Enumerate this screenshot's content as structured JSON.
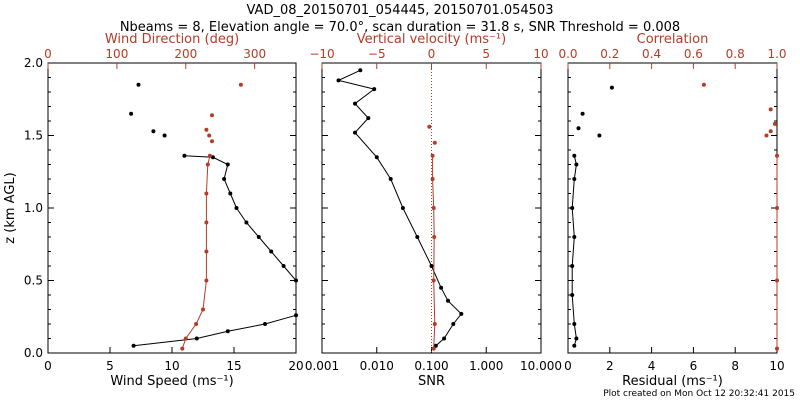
{
  "title_line1": "VAD_08_20150701_054445, 20150701.054503",
  "title_line2": "Nbeams = 8, Elevation angle = 70.0°, scan duration = 31.8 s, SNR Threshold = 0.008",
  "footer": "Plot created on Mon Oct 12 20:32:41 2015",
  "colors": {
    "black": "#000000",
    "red": "#b43c28"
  },
  "chart_data": [
    {
      "type": "line",
      "ylabel": "z (km AGL)",
      "ylim": [
        0,
        2.0
      ],
      "yticks": [
        "0.0",
        "0.5",
        "1.0",
        "1.5",
        "2.0"
      ],
      "xlabel_bottom": "Wind Speed (ms⁻¹)",
      "xlim_bottom": [
        0,
        20
      ],
      "xticks_bottom": [
        "0",
        "5",
        "10",
        "15",
        "20"
      ],
      "xlabel_top": "Wind Direction (deg)",
      "xlim_top": [
        0,
        360
      ],
      "xticks_top": [
        "0",
        "100",
        "200",
        "300"
      ],
      "series": [
        {
          "axis": "bottom",
          "color": "black",
          "connected": true,
          "points": [
            [
              6.9,
              0.05
            ],
            [
              12,
              0.1
            ],
            [
              14.5,
              0.15
            ],
            [
              17.5,
              0.2
            ],
            [
              20.0,
              0.26
            ],
            [
              20,
              0.5
            ],
            [
              19,
              0.6
            ],
            [
              18,
              0.7
            ],
            [
              17,
              0.8
            ],
            [
              16,
              0.9
            ],
            [
              15.2,
              1.0
            ],
            [
              14.7,
              1.1
            ],
            [
              14.2,
              1.2
            ],
            [
              14.5,
              1.3
            ],
            [
              13.3,
              1.35
            ],
            [
              11,
              1.36
            ]
          ]
        },
        {
          "axis": "bottom",
          "color": "black",
          "connected": false,
          "points": [
            [
              7.3,
              1.85
            ],
            [
              6.7,
              1.65
            ],
            [
              8.5,
              1.53
            ],
            [
              9.4,
              1.5
            ]
          ]
        },
        {
          "axis": "top",
          "color": "red",
          "connected": true,
          "points": [
            [
              195,
              0.03
            ],
            [
              200,
              0.1
            ],
            [
              215,
              0.2
            ],
            [
              225,
              0.3
            ],
            [
              230,
              0.5
            ],
            [
              230,
              0.7
            ],
            [
              230,
              0.9
            ],
            [
              230,
              1.1
            ],
            [
              232,
              1.3
            ],
            [
              235,
              1.36
            ]
          ]
        },
        {
          "axis": "top",
          "color": "red",
          "connected": false,
          "points": [
            [
              280,
              1.85
            ],
            [
              238,
              1.64
            ],
            [
              230,
              1.54
            ],
            [
              234,
              1.5
            ],
            [
              238,
              1.46
            ]
          ]
        }
      ]
    },
    {
      "type": "line",
      "xscale": "log",
      "ylim": [
        0,
        2.0
      ],
      "xlabel_bottom": "SNR",
      "xlim_bottom": [
        0.001,
        10.0
      ],
      "xticks_bottom": [
        "0.001",
        "0.010",
        "0.100",
        "1.000",
        "10.000"
      ],
      "xlabel_top": "Vertical velocity (ms⁻¹)",
      "xlim_top": [
        -10,
        10
      ],
      "xticks_top": [
        "−10",
        "−5",
        "0",
        "5",
        "10"
      ],
      "series": [
        {
          "axis": "bottom",
          "color": "black",
          "connected": true,
          "points": [
            [
              0.12,
              0.05
            ],
            [
              0.17,
              0.1
            ],
            [
              0.25,
              0.2
            ],
            [
              0.35,
              0.27
            ],
            [
              0.2,
              0.36
            ],
            [
              0.15,
              0.45
            ],
            [
              0.1,
              0.6
            ],
            [
              0.055,
              0.8
            ],
            [
              0.03,
              1.0
            ],
            [
              0.018,
              1.2
            ],
            [
              0.01,
              1.35
            ],
            [
              0.004,
              1.52
            ],
            [
              0.007,
              1.62
            ],
            [
              0.004,
              1.72
            ],
            [
              0.009,
              1.82
            ],
            [
              0.002,
              1.88
            ],
            [
              0.005,
              1.95
            ]
          ]
        },
        {
          "axis": "top",
          "color": "red",
          "connected": true,
          "points": [
            [
              0.2,
              0.03
            ],
            [
              0.3,
              0.2
            ],
            [
              0.2,
              0.5
            ],
            [
              0.25,
              0.8
            ],
            [
              0.2,
              1.0
            ],
            [
              0.1,
              1.2
            ],
            [
              0.1,
              1.36
            ]
          ]
        },
        {
          "axis": "top",
          "color": "red",
          "connected": false,
          "points": [
            [
              -0.2,
              1.56
            ],
            [
              0.3,
              1.45
            ]
          ]
        }
      ],
      "reference_line": {
        "axis": "top",
        "x": 0,
        "style": "dotted",
        "color": "red"
      }
    },
    {
      "type": "line",
      "ylim": [
        0,
        2.0
      ],
      "xlabel_bottom": "Residual (ms⁻¹)",
      "xlim_bottom": [
        0,
        10
      ],
      "xticks_bottom": [
        "0",
        "2",
        "4",
        "6",
        "8",
        "10"
      ],
      "xlabel_top": "Correlation",
      "xlim_top": [
        0.0,
        1.0
      ],
      "xticks_top": [
        "0.0",
        "0.2",
        "0.4",
        "0.6",
        "0.8",
        "1.0"
      ],
      "series": [
        {
          "axis": "bottom",
          "color": "black",
          "connected": true,
          "points": [
            [
              0.3,
              0.05
            ],
            [
              0.4,
              0.1
            ],
            [
              0.3,
              0.2
            ],
            [
              0.2,
              0.4
            ],
            [
              0.2,
              0.6
            ],
            [
              0.3,
              0.8
            ],
            [
              0.2,
              1.0
            ],
            [
              0.3,
              1.2
            ],
            [
              0.4,
              1.3
            ],
            [
              0.3,
              1.36
            ]
          ]
        },
        {
          "axis": "bottom",
          "color": "black",
          "connected": false,
          "points": [
            [
              2.1,
              1.83
            ],
            [
              0.7,
              1.65
            ],
            [
              0.5,
              1.55
            ],
            [
              1.5,
              1.5
            ]
          ]
        },
        {
          "axis": "top",
          "color": "red",
          "connected": true,
          "points": [
            [
              1.0,
              0.03
            ],
            [
              1.0,
              0.5
            ],
            [
              1.0,
              1.0
            ],
            [
              1.0,
              1.36
            ]
          ]
        },
        {
          "axis": "top",
          "color": "red",
          "connected": false,
          "points": [
            [
              0.65,
              1.85
            ],
            [
              0.97,
              1.68
            ],
            [
              0.99,
              1.58
            ],
            [
              0.97,
              1.53
            ],
            [
              0.95,
              1.5
            ]
          ]
        }
      ]
    }
  ]
}
